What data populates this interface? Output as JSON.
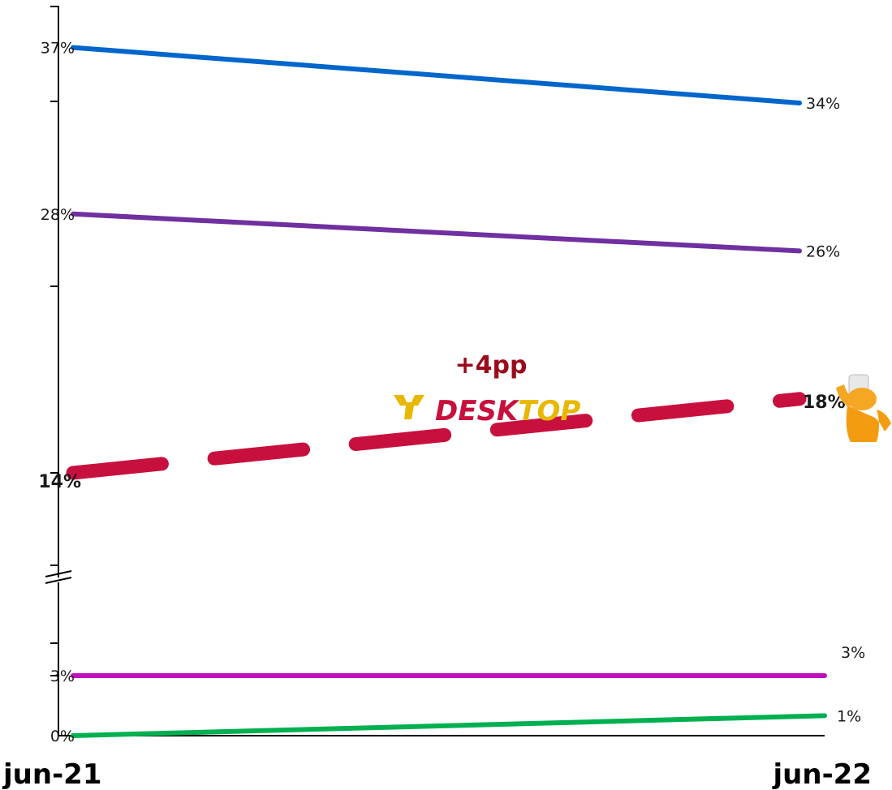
{
  "chart_data": {
    "type": "line",
    "categories": [
      "jun-21",
      "jun-22"
    ],
    "series": [
      {
        "values": [
          37,
          34
        ],
        "labels": [
          "37%",
          "34%"
        ],
        "color": "#0066cc",
        "style": "solid"
      },
      {
        "values": [
          28,
          26
        ],
        "labels": [
          "28%",
          "26%"
        ],
        "color": "#7030a0",
        "style": "solid"
      },
      {
        "values": [
          14,
          18
        ],
        "labels": [
          "14%",
          "18%"
        ],
        "color": "#c8103e",
        "style": "dashed",
        "highlight": true
      },
      {
        "values": [
          3,
          3
        ],
        "labels": [
          "3%",
          "3%"
        ],
        "color": "#c010c0",
        "style": "solid"
      },
      {
        "values": [
          0,
          1
        ],
        "labels": [
          "0%",
          "1%"
        ],
        "color": "#00b050",
        "style": "solid"
      }
    ],
    "axis_break": true,
    "grid": false
  },
  "annotation": {
    "change": "+4pp",
    "change_color": "#9b0a1a",
    "brand_part1": "DESK",
    "brand_part2": "TOP",
    "brand_color1": "#c8103e",
    "brand_color2": "#e8b800",
    "label_color": "#9b0a1a"
  }
}
